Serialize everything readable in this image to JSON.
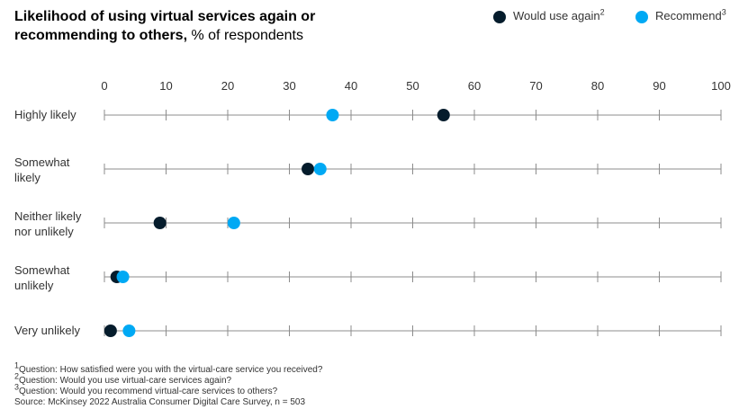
{
  "header": {
    "title_bold": "Likelihood of using virtual services again or recommending to others,",
    "title_rest": " % of respondents"
  },
  "legend": [
    {
      "label": "Would use again",
      "sup": "2",
      "color": "#051c2c"
    },
    {
      "label": "Recommend",
      "sup": "3",
      "color": "#00a9f4"
    }
  ],
  "chart_data": {
    "type": "scatter",
    "title": "Likelihood of using virtual services again or recommending to others, % of respondents",
    "xlim": [
      0,
      100
    ],
    "x_ticks": [
      "0",
      "10",
      "20",
      "30",
      "40",
      "50",
      "60",
      "70",
      "80",
      "90",
      "100"
    ],
    "categories": [
      [
        "Highly likely"
      ],
      [
        "Somewhat",
        "likely"
      ],
      [
        "Neither likely",
        "nor unlikely"
      ],
      [
        "Somewhat",
        "unlikely"
      ],
      [
        "Very unlikely"
      ]
    ],
    "series": [
      {
        "name": "Would use again",
        "color": "#051c2c",
        "values": [
          55,
          33,
          9,
          2,
          1
        ]
      },
      {
        "name": "Recommend",
        "color": "#00a9f4",
        "values": [
          37,
          35,
          21,
          3,
          4
        ]
      }
    ]
  },
  "footnotes": [
    {
      "sup": "1",
      "text": "Question: How satisfied were you with the virtual-care service you received?"
    },
    {
      "sup": "2",
      "text": "Question: Would you use virtual-care services again?"
    },
    {
      "sup": "3",
      "text": "Question: Would you recommend virtual-care services to others?"
    },
    {
      "sup": "",
      "text": " Source: McKinsey 2022 Australia Consumer Digital Care Survey, n = 503"
    }
  ]
}
